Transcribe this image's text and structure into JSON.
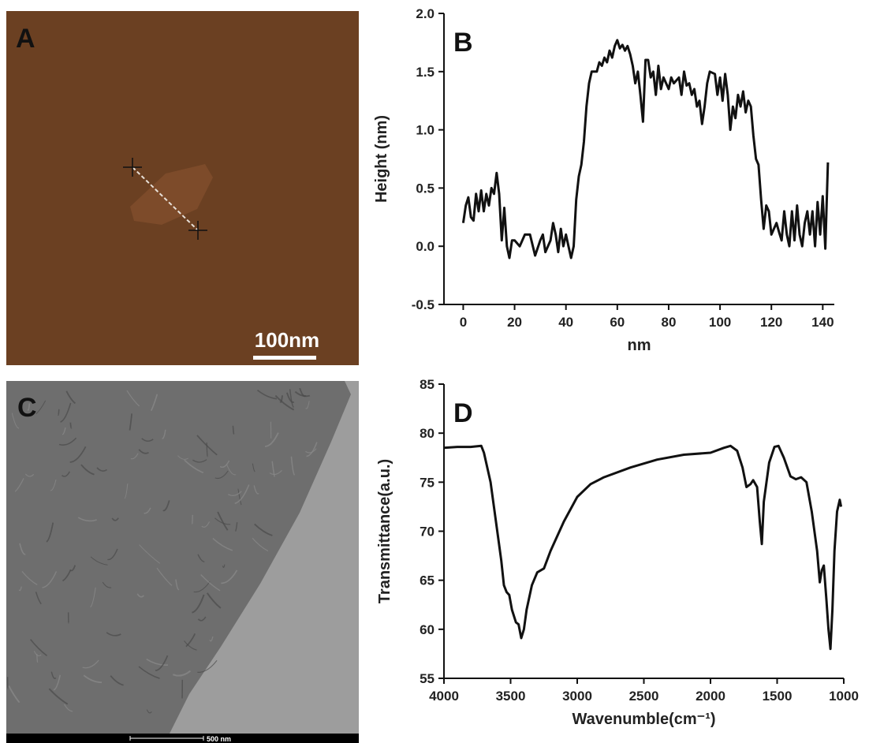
{
  "images": [
    {
      "label": "A",
      "scale_bar": "100nm"
    },
    {
      "label": "C",
      "scale_bar": "500 nm"
    }
  ],
  "chart_data": [
    {
      "type": "line",
      "panel_label": "B",
      "xlabel": "nm",
      "ylabel": "Height (nm)",
      "xlim": [
        -7.5,
        144.5
      ],
      "xticks": [
        0,
        20,
        40,
        60,
        80,
        100,
        120,
        140
      ],
      "ylim": [
        -0.5,
        2.0
      ],
      "yticks": [
        -0.5,
        {
          "value": 0,
          "label": "0.0"
        },
        0.5,
        {
          "value": 1,
          "label": "1.0"
        },
        1.5,
        {
          "value": 2,
          "label": "2.0"
        }
      ],
      "color": "#111111",
      "x": [
        0,
        1,
        2,
        3,
        4,
        5,
        6,
        7,
        8,
        9,
        10,
        11,
        12,
        13,
        14,
        15,
        16,
        17,
        18,
        19,
        20,
        22,
        24,
        26,
        28,
        30,
        31,
        32,
        34,
        35,
        36,
        37,
        38,
        39,
        40,
        41,
        42,
        43,
        44,
        45,
        46,
        47,
        48,
        49,
        50,
        52,
        53,
        54,
        55,
        56,
        57,
        58,
        59,
        60,
        61,
        62,
        63,
        64,
        65,
        66,
        67,
        68,
        69,
        70,
        71,
        72,
        73,
        74,
        75,
        76,
        77,
        78,
        80,
        81,
        82,
        84,
        85,
        86,
        87,
        88,
        89,
        90,
        91,
        92,
        93,
        94,
        95,
        96,
        98,
        99,
        100,
        101,
        102,
        103,
        104,
        105,
        106,
        107,
        108,
        109,
        110,
        111,
        112,
        113,
        114,
        115,
        116,
        117,
        118,
        119,
        120,
        122,
        123,
        124,
        125,
        126,
        127,
        128,
        129,
        130,
        131,
        132,
        133,
        134,
        135,
        136,
        137,
        138,
        139,
        140,
        141,
        142
      ],
      "values": [
        0.2,
        0.35,
        0.42,
        0.25,
        0.22,
        0.45,
        0.3,
        0.48,
        0.3,
        0.45,
        0.35,
        0.5,
        0.45,
        0.63,
        0.45,
        0.05,
        0.33,
        0.0,
        -0.1,
        0.05,
        0.05,
        0.0,
        0.1,
        0.1,
        -0.08,
        0.05,
        0.1,
        -0.05,
        0.05,
        0.2,
        0.1,
        -0.05,
        0.15,
        0.0,
        0.1,
        0.0,
        -0.1,
        0.0,
        0.4,
        0.6,
        0.7,
        0.9,
        1.2,
        1.4,
        1.5,
        1.5,
        1.58,
        1.55,
        1.62,
        1.58,
        1.68,
        1.62,
        1.72,
        1.77,
        1.7,
        1.73,
        1.68,
        1.72,
        1.65,
        1.55,
        1.4,
        1.5,
        1.3,
        1.07,
        1.6,
        1.6,
        1.45,
        1.5,
        1.3,
        1.55,
        1.35,
        1.45,
        1.35,
        1.45,
        1.4,
        1.45,
        1.3,
        1.5,
        1.38,
        1.4,
        1.3,
        1.35,
        1.2,
        1.25,
        1.05,
        1.2,
        1.4,
        1.5,
        1.48,
        1.3,
        1.45,
        1.25,
        1.48,
        1.3,
        1.0,
        1.2,
        1.1,
        1.3,
        1.2,
        1.33,
        1.15,
        1.25,
        1.2,
        0.95,
        0.75,
        0.7,
        0.4,
        0.15,
        0.35,
        0.3,
        0.1,
        0.2,
        0.12,
        0.05,
        0.3,
        0.1,
        0.0,
        0.3,
        0.05,
        0.35,
        0.1,
        0.0,
        0.2,
        0.3,
        0.1,
        0.3,
        0.0,
        0.38,
        0.1,
        0.43,
        -0.02,
        0.72
      ]
    },
    {
      "type": "line",
      "panel_label": "D",
      "xlabel": "Wavenumble(cm⁻¹)",
      "ylabel": "Transmittance(a.u.)",
      "xlim": [
        4000,
        1000
      ],
      "xticks": [
        4000,
        3500,
        3000,
        2500,
        2000,
        1500,
        1000
      ],
      "ylim": [
        55,
        85
      ],
      "yticks": [
        55,
        60,
        65,
        70,
        75,
        80,
        85
      ],
      "color": "#111111",
      "x": [
        4000,
        3900,
        3800,
        3720,
        3700,
        3650,
        3600,
        3570,
        3550,
        3530,
        3510,
        3490,
        3460,
        3440,
        3420,
        3400,
        3380,
        3340,
        3300,
        3250,
        3200,
        3100,
        3000,
        2900,
        2800,
        2600,
        2400,
        2200,
        2000,
        1900,
        1850,
        1800,
        1760,
        1730,
        1700,
        1680,
        1650,
        1630,
        1615,
        1600,
        1560,
        1520,
        1490,
        1450,
        1400,
        1360,
        1320,
        1280,
        1240,
        1200,
        1180,
        1165,
        1150,
        1130,
        1115,
        1100,
        1085,
        1070,
        1050,
        1030,
        1020
      ],
      "values": [
        78.5,
        78.6,
        78.6,
        78.7,
        78.0,
        75,
        70,
        67,
        64.5,
        63.8,
        63.5,
        62,
        60.7,
        60.5,
        59.1,
        60,
        62,
        64.5,
        65.8,
        66.2,
        68,
        71,
        73.5,
        74.8,
        75.5,
        76.5,
        77.3,
        77.8,
        78.0,
        78.5,
        78.7,
        78.2,
        76.5,
        74.5,
        74.8,
        75.2,
        74.5,
        71,
        68.7,
        73,
        77,
        78.6,
        78.7,
        77.5,
        75.6,
        75.3,
        75.5,
        75,
        72,
        68,
        64.8,
        66,
        66.5,
        63,
        60,
        58,
        62,
        68,
        72,
        73.2,
        72.5
      ]
    }
  ]
}
